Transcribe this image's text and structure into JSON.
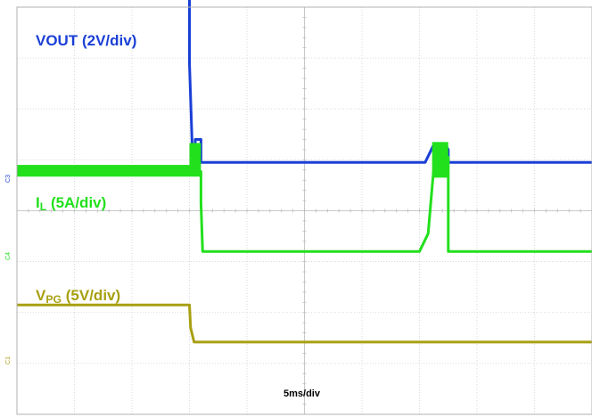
{
  "chart_data": {
    "type": "line",
    "title": "",
    "timebase": "5ms/div",
    "grid": true,
    "x_divisions": 10,
    "y_divisions": 8,
    "x_unit": "div",
    "channels": [
      {
        "id": "C3",
        "label_main": "VOUT",
        "label_sub": "",
        "label_scale": " (2V/div)",
        "scale": "2V/div",
        "color": "#1a3fd6",
        "marker": "C3",
        "baseline_div": 2.1,
        "x": [
          0,
          3.0,
          3.0,
          3.05,
          3.1,
          3.1,
          3.2,
          3.2,
          7.1,
          7.25,
          7.45,
          7.5,
          7.5,
          10
        ],
        "y": [
          3.8,
          3.8,
          2.0,
          0.3,
          0.3,
          0.5,
          0.5,
          0.05,
          0.05,
          0.4,
          0.4,
          0.3,
          0.05,
          0.05
        ]
      },
      {
        "id": "C4",
        "label_main": "I",
        "label_sub": "L",
        "label_scale": " (5A/div)",
        "scale": "5A/div",
        "color": "#22e01c",
        "marker": "C4",
        "baseline_div": 3.85,
        "noise_band": [
          [
            0,
            3.0,
            1.75,
            1.52
          ],
          [
            3.0,
            3.2,
            2.18,
            1.52
          ],
          [
            7.22,
            7.5,
            2.2,
            1.5
          ]
        ],
        "x": [
          0,
          3.0,
          3.2,
          3.2,
          3.23,
          7.0,
          7.15,
          7.25,
          7.25,
          7.5,
          7.5,
          10
        ],
        "y": [
          1.62,
          1.62,
          1.62,
          1.0,
          0.05,
          0.05,
          0.4,
          1.7,
          1.9,
          1.9,
          0.05,
          0.05
        ]
      },
      {
        "id": "C1",
        "label_main": "V",
        "label_sub": "PG",
        "label_scale": " (5V/div)",
        "scale": "5V/div",
        "color": "#a8a012",
        "marker": "C1",
        "baseline_div": 5.6,
        "x": [
          0,
          3.0,
          3.02,
          3.08,
          10
        ],
        "y": [
          0.75,
          0.75,
          0.3,
          0.02,
          0.02
        ]
      }
    ]
  }
}
